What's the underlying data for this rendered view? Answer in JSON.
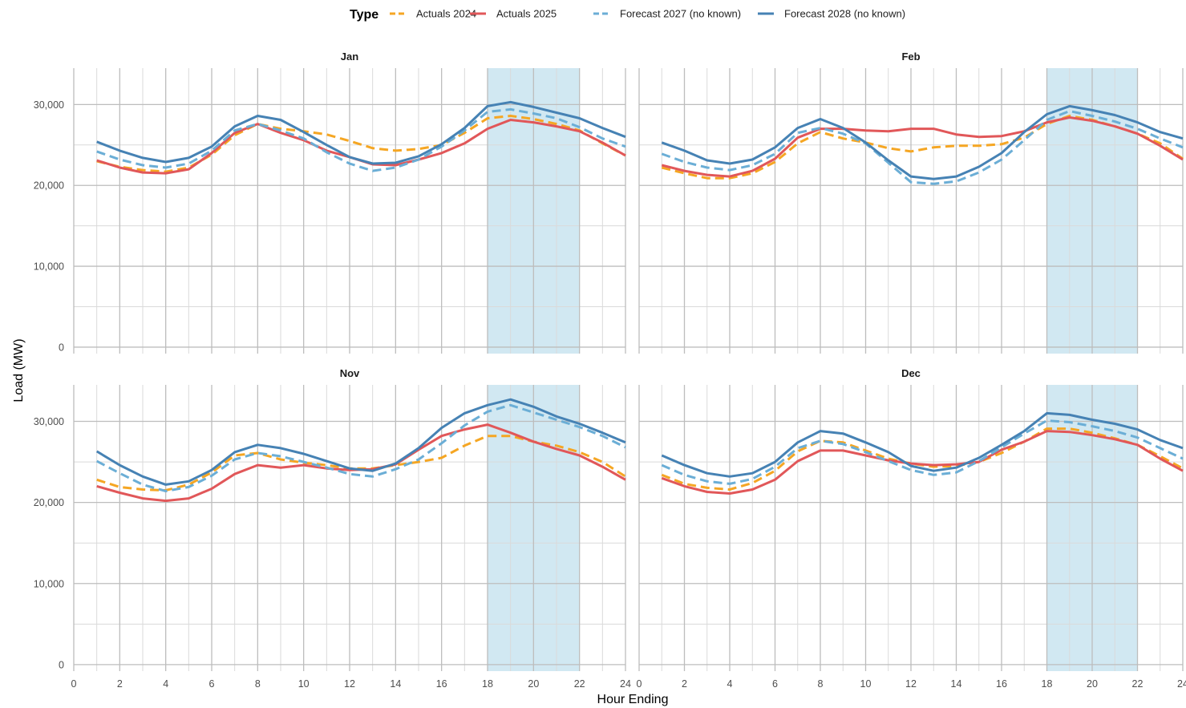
{
  "legend": {
    "title": "Type",
    "items": [
      {
        "label": "Actuals 2024",
        "color": "#F5A623",
        "dash": true
      },
      {
        "label": "Actuals 2025",
        "color": "#E15759",
        "dash": false
      },
      {
        "label": "Forecast 2027 (no known)",
        "color": "#6BAED6",
        "dash": true
      },
      {
        "label": "Forecast 2028 (no known)",
        "color": "#4682B4",
        "dash": false
      }
    ]
  },
  "xlabel": "Hour Ending",
  "ylabel": "Load (MW)",
  "colors": {
    "highlight": "#d1e8f2",
    "grid_major": "#bdbdbd",
    "grid_minor": "#dadada"
  },
  "chart_data": [
    {
      "type": "line",
      "title": "Jan",
      "x": [
        1,
        2,
        3,
        4,
        5,
        6,
        7,
        8,
        9,
        10,
        11,
        12,
        13,
        14,
        15,
        16,
        17,
        18,
        19,
        20,
        21,
        22,
        23,
        24
      ],
      "xlim": [
        0,
        24
      ],
      "ylim": [
        -800,
        34500
      ],
      "xticks": [
        0,
        2,
        4,
        6,
        8,
        10,
        12,
        14,
        16,
        18,
        20,
        22,
        24
      ],
      "yticks": [
        0,
        10000,
        20000,
        30000
      ],
      "ytick_labels": [
        "0",
        "10,000",
        "20,000",
        "30,000"
      ],
      "highlight": [
        18,
        22
      ],
      "series": [
        {
          "name": "Actuals 2024",
          "values": [
            23000,
            22300,
            21900,
            21700,
            22200,
            23800,
            26200,
            27600,
            27000,
            26700,
            26300,
            25500,
            24600,
            24300,
            24500,
            25000,
            26500,
            28300,
            28600,
            28200,
            27600,
            26800,
            25200,
            23700
          ]
        },
        {
          "name": "Actuals 2025",
          "values": [
            23100,
            22200,
            21600,
            21500,
            22000,
            24000,
            26500,
            27600,
            26500,
            25600,
            24300,
            23500,
            22600,
            22500,
            23200,
            24000,
            25200,
            27000,
            28100,
            27800,
            27300,
            26700,
            25300,
            23700
          ]
        },
        {
          "name": "Forecast 2027 (no known)",
          "values": [
            24200,
            23200,
            22500,
            22200,
            22700,
            24300,
            26800,
            27600,
            26800,
            25800,
            24100,
            22700,
            21800,
            22200,
            23200,
            24800,
            26800,
            29100,
            29400,
            28900,
            28300,
            27200,
            25800,
            24800
          ]
        },
        {
          "name": "Forecast 2028 (no known)",
          "values": [
            25400,
            24300,
            23400,
            22900,
            23400,
            24800,
            27300,
            28600,
            28100,
            26600,
            25000,
            23500,
            22700,
            22800,
            23600,
            25100,
            27100,
            29800,
            30300,
            29700,
            29000,
            28300,
            27100,
            26000
          ]
        }
      ]
    },
    {
      "type": "line",
      "title": "Feb",
      "x": [
        1,
        2,
        3,
        4,
        5,
        6,
        7,
        8,
        9,
        10,
        11,
        12,
        13,
        14,
        15,
        16,
        17,
        18,
        19,
        20,
        21,
        22,
        23,
        24
      ],
      "xlim": [
        0,
        24
      ],
      "ylim": [
        -800,
        34500
      ],
      "xticks": [
        0,
        2,
        4,
        6,
        8,
        10,
        12,
        14,
        16,
        18,
        20,
        22,
        24
      ],
      "yticks": [
        0,
        10000,
        20000,
        30000
      ],
      "ytick_labels": [
        "0",
        "10,000",
        "20,000",
        "30,000"
      ],
      "highlight": [
        18,
        22
      ],
      "series": [
        {
          "name": "Actuals 2024",
          "values": [
            22200,
            21500,
            20900,
            20900,
            21500,
            22900,
            25200,
            26600,
            25800,
            25300,
            24600,
            24200,
            24700,
            24900,
            24900,
            25100,
            25900,
            27600,
            28600,
            28100,
            27300,
            26400,
            25200,
            23300
          ]
        },
        {
          "name": "Actuals 2025",
          "values": [
            22500,
            21800,
            21300,
            21100,
            21800,
            23300,
            25900,
            27000,
            27000,
            26800,
            26700,
            27000,
            27000,
            26300,
            26000,
            26100,
            26700,
            27800,
            28400,
            28000,
            27300,
            26400,
            24900,
            23200
          ]
        },
        {
          "name": "Forecast 2027 (no known)",
          "values": [
            23900,
            22900,
            22200,
            21900,
            22500,
            23900,
            26500,
            27100,
            26400,
            25200,
            22800,
            20400,
            20200,
            20500,
            21600,
            23200,
            25600,
            28100,
            29200,
            28600,
            27900,
            27000,
            25800,
            24700
          ]
        },
        {
          "name": "Forecast 2028 (no known)",
          "values": [
            25300,
            24300,
            23100,
            22700,
            23200,
            24700,
            27100,
            28200,
            27100,
            25300,
            23100,
            21100,
            20800,
            21100,
            22300,
            24000,
            26600,
            28800,
            29800,
            29300,
            28700,
            27800,
            26600,
            25800
          ]
        }
      ]
    },
    {
      "type": "line",
      "title": "Nov",
      "x": [
        1,
        2,
        3,
        4,
        5,
        6,
        7,
        8,
        9,
        10,
        11,
        12,
        13,
        14,
        15,
        16,
        17,
        18,
        19,
        20,
        21,
        22,
        23,
        24
      ],
      "xlim": [
        0,
        24
      ],
      "ylim": [
        -800,
        34500
      ],
      "xticks": [
        0,
        2,
        4,
        6,
        8,
        10,
        12,
        14,
        16,
        18,
        20,
        22,
        24
      ],
      "yticks": [
        0,
        10000,
        20000,
        30000
      ],
      "ytick_labels": [
        "0",
        "10,000",
        "20,000",
        "30,000"
      ],
      "highlight": [
        18,
        22
      ],
      "series": [
        {
          "name": "Actuals 2024",
          "values": [
            22800,
            21900,
            21600,
            21500,
            22200,
            23700,
            25800,
            26100,
            25300,
            24900,
            24600,
            24200,
            24200,
            24600,
            25000,
            25500,
            27000,
            28200,
            28200,
            27500,
            27000,
            26200,
            25000,
            23200
          ]
        },
        {
          "name": "Actuals 2025",
          "values": [
            22000,
            21200,
            20500,
            20200,
            20500,
            21700,
            23500,
            24600,
            24300,
            24600,
            24200,
            24000,
            24100,
            24700,
            26500,
            28200,
            29000,
            29600,
            28600,
            27500,
            26600,
            25800,
            24400,
            22800
          ]
        },
        {
          "name": "Forecast 2027 (no known)",
          "values": [
            25100,
            23600,
            22200,
            21400,
            21900,
            23300,
            25300,
            26100,
            25700,
            25000,
            24300,
            23500,
            23200,
            24100,
            25300,
            27300,
            29500,
            31200,
            32000,
            31100,
            30200,
            29300,
            28200,
            26800
          ]
        },
        {
          "name": "Forecast 2028 (no known)",
          "values": [
            26300,
            24600,
            23200,
            22200,
            22600,
            24000,
            26200,
            27100,
            26700,
            26000,
            25100,
            24200,
            23900,
            24800,
            26700,
            29200,
            31000,
            32000,
            32700,
            31800,
            30600,
            29700,
            28600,
            27400
          ]
        }
      ]
    },
    {
      "type": "line",
      "title": "Dec",
      "x": [
        1,
        2,
        3,
        4,
        5,
        6,
        7,
        8,
        9,
        10,
        11,
        12,
        13,
        14,
        15,
        16,
        17,
        18,
        19,
        20,
        21,
        22,
        23,
        24
      ],
      "xlim": [
        0,
        24
      ],
      "ylim": [
        -800,
        34500
      ],
      "xticks": [
        0,
        2,
        4,
        6,
        8,
        10,
        12,
        14,
        16,
        18,
        20,
        22,
        24
      ],
      "yticks": [
        0,
        10000,
        20000,
        30000
      ],
      "ytick_labels": [
        "0",
        "10,000",
        "20,000",
        "30,000"
      ],
      "highlight": [
        18,
        22
      ],
      "series": [
        {
          "name": "Actuals 2024",
          "values": [
            23400,
            22300,
            21800,
            21600,
            22400,
            23900,
            26300,
            27600,
            27400,
            26400,
            25400,
            24800,
            24400,
            24500,
            25000,
            26100,
            27500,
            29100,
            29100,
            28600,
            27900,
            27100,
            25700,
            24200
          ]
        },
        {
          "name": "Actuals 2025",
          "values": [
            23000,
            22000,
            21300,
            21100,
            21600,
            22800,
            25100,
            26400,
            26400,
            25800,
            25200,
            24800,
            24600,
            24700,
            25000,
            26500,
            27500,
            28800,
            28700,
            28300,
            27800,
            27100,
            25400,
            23900
          ]
        },
        {
          "name": "Forecast 2027 (no known)",
          "values": [
            24600,
            23400,
            22600,
            22300,
            22900,
            24400,
            26700,
            27600,
            27200,
            26200,
            25100,
            24000,
            23400,
            23700,
            25100,
            26800,
            28500,
            30100,
            29900,
            29400,
            28800,
            28000,
            26700,
            25400
          ]
        },
        {
          "name": "Forecast 2028 (no known)",
          "values": [
            25800,
            24600,
            23600,
            23200,
            23600,
            25000,
            27400,
            28800,
            28500,
            27400,
            26200,
            24500,
            23900,
            24300,
            25500,
            27100,
            28800,
            31000,
            30800,
            30200,
            29700,
            29000,
            27700,
            26700
          ]
        }
      ]
    }
  ]
}
